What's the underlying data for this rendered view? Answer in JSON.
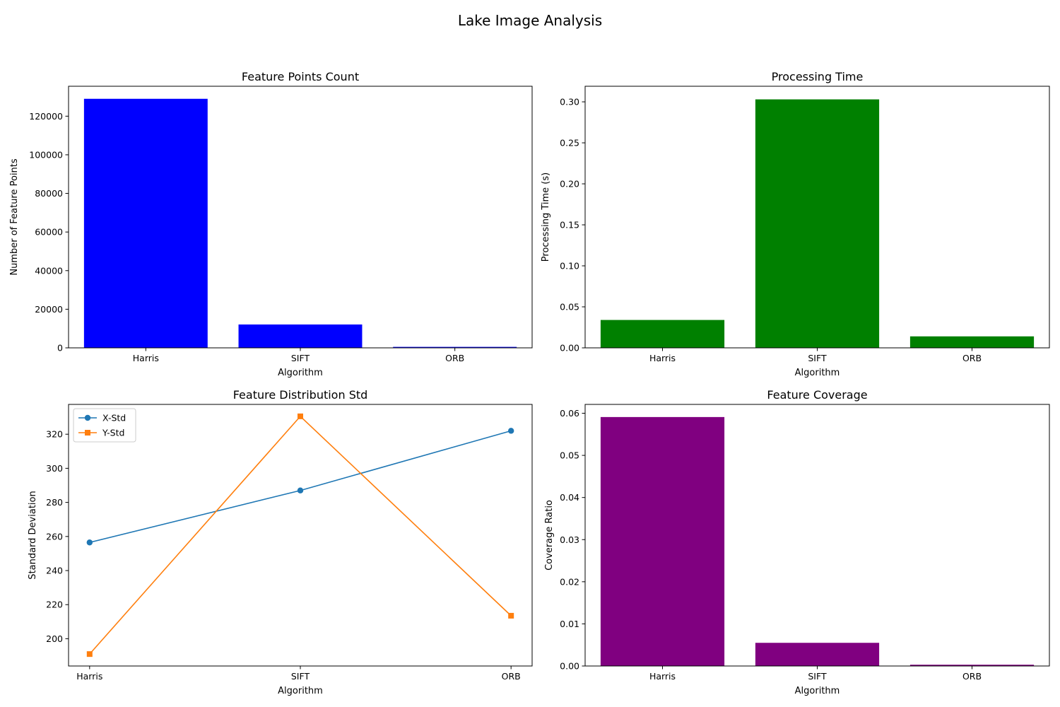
{
  "figure": {
    "title": "Lake Image Analysis"
  },
  "chart_data": [
    {
      "type": "bar",
      "title": "Feature Points Count",
      "xlabel": "Algorithm",
      "ylabel": "Number of Feature Points",
      "categories": [
        "Harris",
        "SIFT",
        "ORB"
      ],
      "values": [
        129000,
        12100,
        500
      ],
      "ylim": [
        0,
        135500
      ],
      "yticks": [
        0,
        20000,
        40000,
        60000,
        80000,
        100000,
        120000
      ],
      "ytick_labels": [
        "0",
        "20000",
        "40000",
        "60000",
        "80000",
        "100000",
        "120000"
      ],
      "color": "#0000ff",
      "grid": false
    },
    {
      "type": "bar",
      "title": "Processing Time",
      "xlabel": "Algorithm",
      "ylabel": "Processing Time (s)",
      "categories": [
        "Harris",
        "SIFT",
        "ORB"
      ],
      "values": [
        0.034,
        0.303,
        0.014
      ],
      "ylim": [
        0,
        0.319
      ],
      "yticks": [
        0,
        0.05,
        0.1,
        0.15,
        0.2,
        0.25,
        0.3
      ],
      "ytick_labels": [
        "0.00",
        "0.05",
        "0.10",
        "0.15",
        "0.20",
        "0.25",
        "0.30"
      ],
      "color": "#008000",
      "grid": false
    },
    {
      "type": "line",
      "title": "Feature Distribution Std",
      "xlabel": "Algorithm",
      "ylabel": "Standard Deviation",
      "categories": [
        "Harris",
        "SIFT",
        "ORB"
      ],
      "series": [
        {
          "name": "X-Std",
          "values": [
            256.5,
            287,
            322
          ],
          "color": "#1f77b4",
          "marker": "circle"
        },
        {
          "name": "Y-Std",
          "values": [
            191,
            330.5,
            213.5
          ],
          "color": "#ff7f0e",
          "marker": "square"
        }
      ],
      "ylim": [
        184,
        337.5
      ],
      "yticks": [
        200,
        220,
        240,
        260,
        280,
        300,
        320
      ],
      "ytick_labels": [
        "200",
        "220",
        "240",
        "260",
        "280",
        "300",
        "320"
      ],
      "legend": "top-left",
      "grid": false
    },
    {
      "type": "bar",
      "title": "Feature Coverage",
      "xlabel": "Algorithm",
      "ylabel": "Coverage Ratio",
      "categories": [
        "Harris",
        "SIFT",
        "ORB"
      ],
      "values": [
        0.0591,
        0.0055,
        0.0003
      ],
      "ylim": [
        0,
        0.0621
      ],
      "yticks": [
        0,
        0.01,
        0.02,
        0.03,
        0.04,
        0.05,
        0.06
      ],
      "ytick_labels": [
        "0.00",
        "0.01",
        "0.02",
        "0.03",
        "0.04",
        "0.05",
        "0.06"
      ],
      "color": "#800080",
      "grid": false
    }
  ]
}
